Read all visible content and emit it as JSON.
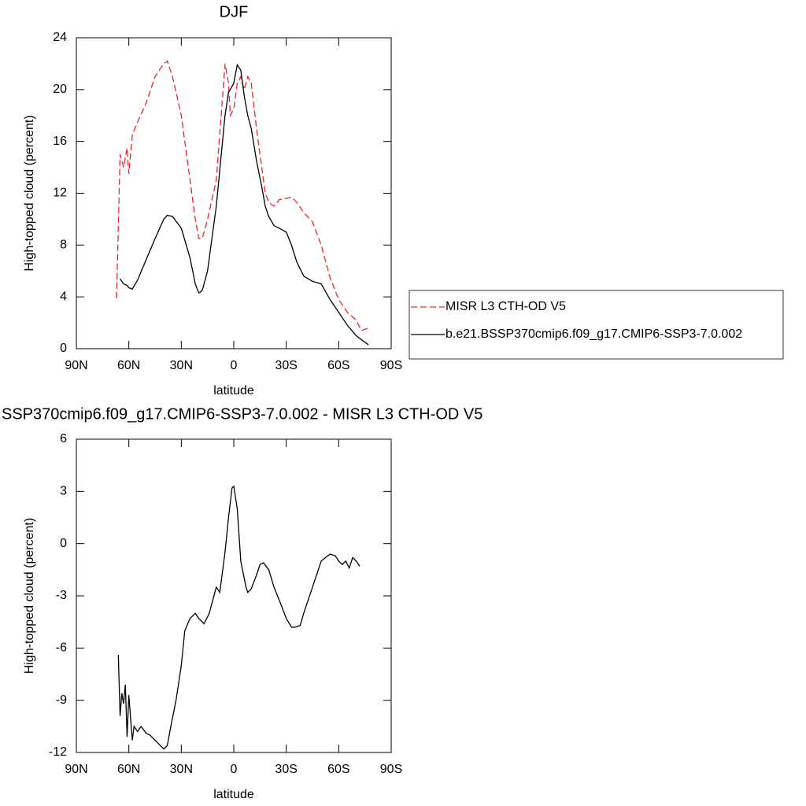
{
  "chart_data": [
    {
      "type": "line",
      "title": "DJF",
      "xlabel": "latitude",
      "ylabel": "High-topped cloud (percent)",
      "xlim": [
        90,
        -90
      ],
      "ylim": [
        0,
        24
      ],
      "xticks": [
        {
          "value": 90,
          "label": "90N"
        },
        {
          "value": 60,
          "label": "60N"
        },
        {
          "value": 30,
          "label": "30N"
        },
        0,
        {
          "value": -30,
          "label": "30S"
        },
        {
          "value": -60,
          "label": "60S"
        },
        {
          "value": -90,
          "label": "90S"
        }
      ],
      "yticks": [
        0,
        4,
        8,
        12,
        16,
        20,
        24
      ],
      "legend": "right",
      "x": [
        67,
        65,
        63,
        61,
        60,
        58,
        55,
        50,
        45,
        40,
        38,
        35,
        30,
        25,
        22,
        20,
        18,
        15,
        10,
        5,
        3,
        2,
        0,
        -2,
        -4,
        -6,
        -8,
        -10,
        -13,
        -16,
        -18,
        -20,
        -23,
        -26,
        -30,
        -33,
        -36,
        -40,
        -45,
        -50,
        -55,
        -60,
        -65,
        -70,
        -73,
        -75,
        -77
      ],
      "series": [
        {
          "name": "MISR L3 CTH-OD V5",
          "color": "#e8262b",
          "line_style": "dashed",
          "values": [
            3.9,
            15,
            14,
            15.5,
            13.5,
            16.5,
            17.5,
            19,
            21,
            22,
            22.2,
            21,
            18,
            13,
            10,
            8.5,
            8.5,
            10,
            13,
            22,
            20.5,
            18,
            18.5,
            20.5,
            21,
            20,
            21,
            20.5,
            17,
            14,
            12,
            11.3,
            11,
            11.5,
            11.6,
            11.7,
            11.3,
            10.5,
            9.8,
            8,
            5.5,
            3.8,
            2.8,
            2.2,
            1.4,
            1.5,
            1.6
          ]
        },
        {
          "name": "b.e21.BSSP370cmip6.f09_g17.CMIP6-SSP3-7.0.002",
          "color": "#000000",
          "line_style": "solid",
          "values": [
            null,
            5.4,
            5.0,
            4.9,
            4.7,
            4.6,
            5.3,
            6.9,
            8.5,
            10,
            10.3,
            10.2,
            9.3,
            7,
            5,
            4.3,
            4.5,
            6,
            11,
            18,
            19.8,
            20,
            20.5,
            21.9,
            21.5,
            19.5,
            18,
            17,
            14.5,
            12.5,
            11,
            10.2,
            9.5,
            9.3,
            9,
            8,
            6.7,
            5.6,
            5.2,
            5.0,
            3.8,
            2.8,
            1.8,
            1,
            0.7,
            0.5,
            0.3
          ]
        }
      ]
    },
    {
      "type": "line",
      "title": "SSP370cmip6.f09_g17.CMIP6-SSP3-7.0.002 - MISR L3 CTH-OD V5",
      "xlabel": "latitude",
      "ylabel": "High-topped cloud (percent)",
      "xlim": [
        90,
        -90
      ],
      "ylim": [
        -12,
        6
      ],
      "xticks": [
        {
          "value": 90,
          "label": "90N"
        },
        {
          "value": 60,
          "label": "60N"
        },
        {
          "value": 30,
          "label": "30N"
        },
        0,
        {
          "value": -30,
          "label": "30S"
        },
        {
          "value": -60,
          "label": "60S"
        },
        {
          "value": -90,
          "label": "90S"
        }
      ],
      "yticks": [
        -12,
        -9,
        -6,
        -3,
        0,
        3,
        6
      ],
      "x": [
        66,
        65,
        64,
        63,
        62,
        61,
        60,
        58,
        57,
        55,
        53,
        50,
        48,
        45,
        42,
        40,
        38,
        36,
        33,
        30,
        28,
        25,
        22,
        20,
        17,
        14,
        10,
        8,
        5,
        3,
        1,
        0,
        -2,
        -4,
        -7,
        -8,
        -10,
        -13,
        -15,
        -17,
        -20,
        -23,
        -27,
        -30,
        -33,
        -35,
        -38,
        -40,
        -45,
        -50,
        -55,
        -58,
        -60,
        -62,
        -64,
        -66,
        -68,
        -70,
        -72
      ],
      "series": [
        {
          "color": "#000000",
          "line_style": "solid",
          "values": [
            -6.4,
            -9.9,
            -8.6,
            -9.2,
            -8.1,
            -11.1,
            -8.7,
            -11.3,
            -10.5,
            -10.8,
            -10.5,
            -10.9,
            -11,
            -11.3,
            -11.6,
            -11.8,
            -11.6,
            -10.5,
            -9,
            -7,
            -5,
            -4.3,
            -4,
            -4.3,
            -4.6,
            -4,
            -2.5,
            -2.8,
            -0.5,
            1.5,
            3.2,
            3.3,
            2,
            -1,
            -2.5,
            -2.8,
            -2.6,
            -1.8,
            -1.2,
            -1.1,
            -1.5,
            -2.5,
            -3.5,
            -4.3,
            -4.8,
            -4.8,
            -4.7,
            -4,
            -2.5,
            -1,
            -0.6,
            -0.7,
            -1,
            -1.2,
            -1,
            -1.4,
            -0.8,
            -1,
            -1.3
          ]
        }
      ]
    }
  ]
}
